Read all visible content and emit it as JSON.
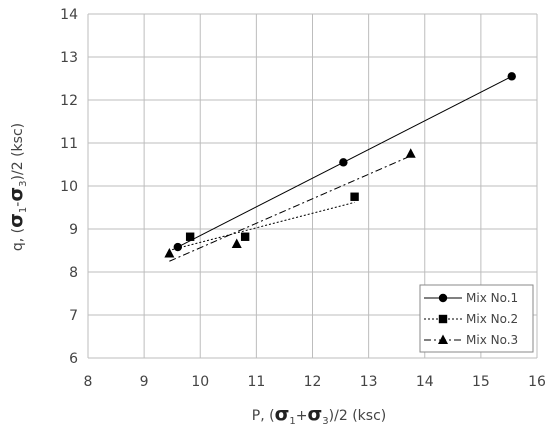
{
  "chart_data": {
    "type": "scatter",
    "title": "",
    "xlabel_parts": [
      "P, (",
      "σ",
      "1",
      "+",
      "σ",
      "3",
      ")/2 (ksc)"
    ],
    "ylabel_parts": [
      "q, (",
      "σ",
      "1",
      "-",
      "σ",
      "3",
      ")/2 (ksc)"
    ],
    "xlim": [
      8,
      16
    ],
    "ylim": [
      6,
      14
    ],
    "xticks": [
      "8",
      "9",
      "10",
      "11",
      "12",
      "13",
      "14",
      "15",
      "16"
    ],
    "yticks": [
      "6",
      "7",
      "8",
      "9",
      "10",
      "11",
      "12",
      "13",
      "14"
    ],
    "grid": true,
    "legend_position": "bottom-right",
    "series": [
      {
        "name": "Mix No.1",
        "marker": "circle",
        "line": "solid",
        "color": "#000000",
        "points": [
          [
            9.6,
            8.58
          ],
          [
            12.55,
            10.55
          ],
          [
            15.55,
            12.55
          ]
        ],
        "fit": [
          [
            9.6,
            8.58
          ],
          [
            15.55,
            12.55
          ]
        ]
      },
      {
        "name": "Mix No.2",
        "marker": "square",
        "line": "dotted",
        "color": "#000000",
        "points": [
          [
            9.82,
            8.82
          ],
          [
            10.8,
            8.82
          ],
          [
            12.75,
            9.75
          ]
        ],
        "fit": [
          [
            9.5,
            8.52
          ],
          [
            12.75,
            9.62
          ]
        ]
      },
      {
        "name": "Mix No.3",
        "marker": "triangle",
        "line": "dashdot",
        "color": "#000000",
        "points": [
          [
            9.45,
            8.43
          ],
          [
            10.65,
            8.65
          ],
          [
            13.75,
            10.75
          ]
        ],
        "fit": [
          [
            9.45,
            8.25
          ],
          [
            13.75,
            10.7
          ]
        ]
      }
    ]
  }
}
